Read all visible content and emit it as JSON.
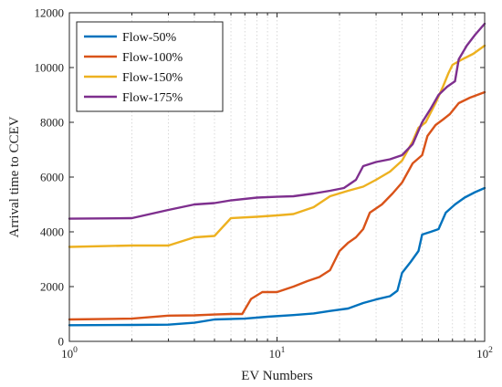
{
  "chart_data": {
    "type": "line",
    "title": "",
    "xlabel": "EV Numbers",
    "ylabel": "Arrival time to CCEV",
    "xscale": "log",
    "xlim": [
      1,
      100
    ],
    "ylim": [
      0,
      12000
    ],
    "x_ticks": [
      {
        "value": 1,
        "base": "10",
        "exp": "0"
      },
      {
        "value": 10,
        "base": "10",
        "exp": "1"
      },
      {
        "value": 100,
        "base": "10",
        "exp": "2"
      }
    ],
    "y_ticks": [
      0,
      2000,
      4000,
      6000,
      8000,
      10000,
      12000
    ],
    "grid": "dotted log-x grid",
    "legend_position": "top-left",
    "series": [
      {
        "name": "Flow-50%",
        "color": "#0072BD",
        "points": [
          [
            1,
            590
          ],
          [
            2,
            600
          ],
          [
            3,
            610
          ],
          [
            4,
            680
          ],
          [
            5,
            800
          ],
          [
            7,
            830
          ],
          [
            9,
            900
          ],
          [
            12,
            960
          ],
          [
            15,
            1020
          ],
          [
            18,
            1110
          ],
          [
            22,
            1200
          ],
          [
            26,
            1400
          ],
          [
            30,
            1530
          ],
          [
            35,
            1650
          ],
          [
            38,
            1850
          ],
          [
            40,
            2500
          ],
          [
            44,
            2900
          ],
          [
            48,
            3300
          ],
          [
            50,
            3900
          ],
          [
            55,
            4000
          ],
          [
            60,
            4100
          ],
          [
            65,
            4700
          ],
          [
            72,
            5000
          ],
          [
            80,
            5250
          ],
          [
            90,
            5450
          ],
          [
            100,
            5600
          ]
        ]
      },
      {
        "name": "Flow-100%",
        "color": "#D95319",
        "points": [
          [
            1,
            800
          ],
          [
            2,
            830
          ],
          [
            3,
            940
          ],
          [
            4,
            950
          ],
          [
            5,
            980
          ],
          [
            6,
            1000
          ],
          [
            6.8,
            1000
          ],
          [
            7.5,
            1550
          ],
          [
            8.5,
            1800
          ],
          [
            10,
            1800
          ],
          [
            12,
            2000
          ],
          [
            14,
            2200
          ],
          [
            16,
            2350
          ],
          [
            18,
            2600
          ],
          [
            20,
            3300
          ],
          [
            22,
            3600
          ],
          [
            24,
            3800
          ],
          [
            26,
            4100
          ],
          [
            28,
            4700
          ],
          [
            32,
            5000
          ],
          [
            36,
            5400
          ],
          [
            40,
            5800
          ],
          [
            45,
            6500
          ],
          [
            50,
            6800
          ],
          [
            53,
            7500
          ],
          [
            58,
            7900
          ],
          [
            63,
            8100
          ],
          [
            68,
            8300
          ],
          [
            75,
            8700
          ],
          [
            85,
            8900
          ],
          [
            100,
            9100
          ]
        ]
      },
      {
        "name": "Flow-150%",
        "color": "#EDB120",
        "points": [
          [
            1,
            3450
          ],
          [
            2,
            3500
          ],
          [
            3,
            3500
          ],
          [
            4,
            3800
          ],
          [
            5,
            3850
          ],
          [
            6,
            4500
          ],
          [
            8,
            4550
          ],
          [
            10,
            4600
          ],
          [
            12,
            4650
          ],
          [
            15,
            4900
          ],
          [
            18,
            5300
          ],
          [
            22,
            5500
          ],
          [
            26,
            5650
          ],
          [
            30,
            5900
          ],
          [
            35,
            6200
          ],
          [
            40,
            6600
          ],
          [
            45,
            7300
          ],
          [
            48,
            7800
          ],
          [
            52,
            8000
          ],
          [
            58,
            8700
          ],
          [
            63,
            9300
          ],
          [
            67,
            9800
          ],
          [
            70,
            10100
          ],
          [
            78,
            10300
          ],
          [
            88,
            10500
          ],
          [
            100,
            10800
          ]
        ]
      },
      {
        "name": "Flow-175%",
        "color": "#7E2F8E",
        "points": [
          [
            1,
            4480
          ],
          [
            2,
            4500
          ],
          [
            3,
            4800
          ],
          [
            4,
            5000
          ],
          [
            5,
            5050
          ],
          [
            6,
            5150
          ],
          [
            8,
            5250
          ],
          [
            10,
            5280
          ],
          [
            12,
            5300
          ],
          [
            15,
            5400
          ],
          [
            18,
            5500
          ],
          [
            21,
            5600
          ],
          [
            24,
            5900
          ],
          [
            26,
            6400
          ],
          [
            30,
            6550
          ],
          [
            35,
            6650
          ],
          [
            40,
            6800
          ],
          [
            45,
            7200
          ],
          [
            50,
            8000
          ],
          [
            55,
            8500
          ],
          [
            60,
            9000
          ],
          [
            66,
            9300
          ],
          [
            72,
            9500
          ],
          [
            75,
            10300
          ],
          [
            82,
            10800
          ],
          [
            90,
            11200
          ],
          [
            100,
            11600
          ]
        ]
      }
    ]
  }
}
